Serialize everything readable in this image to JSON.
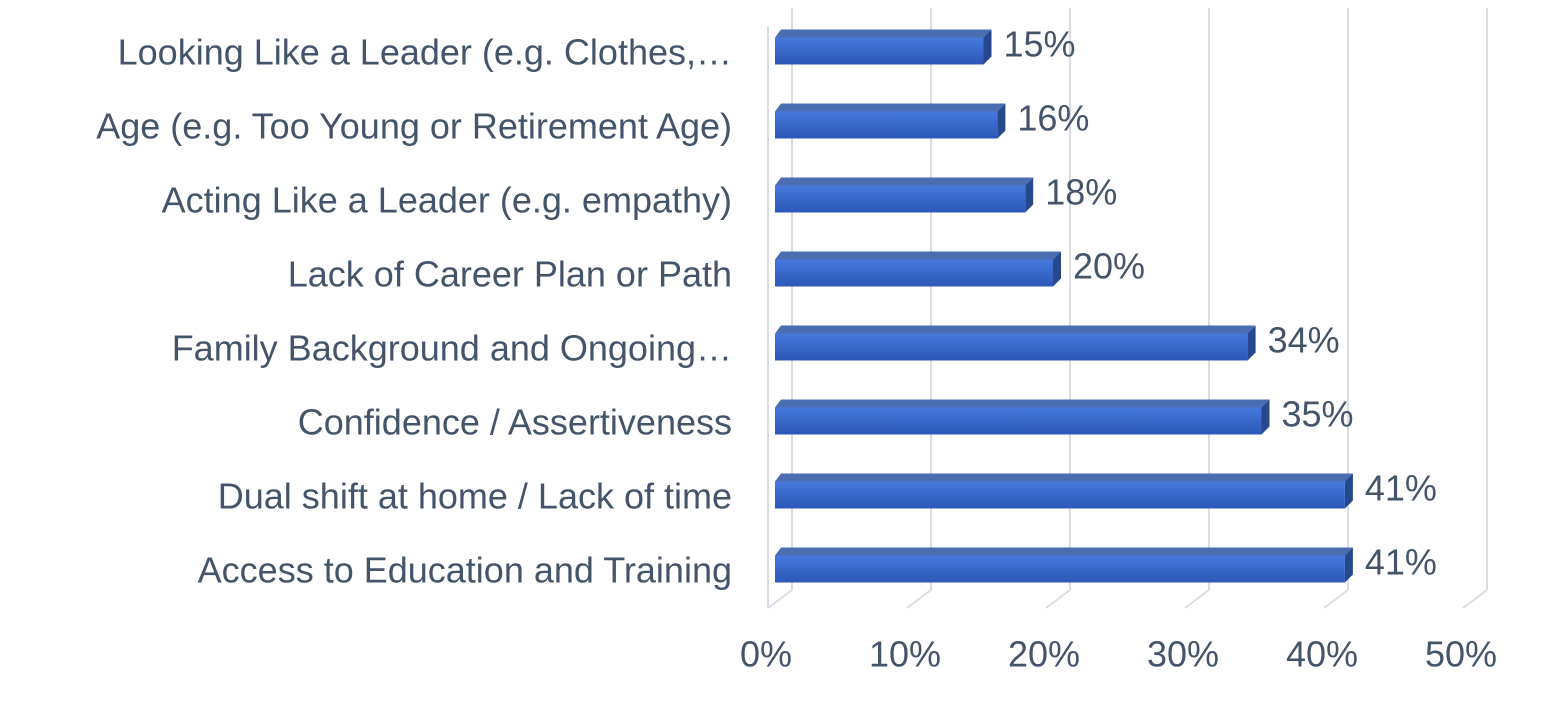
{
  "chart_data": {
    "type": "bar",
    "orientation": "horizontal",
    "categories": [
      "Looking Like a Leader (e.g. Clothes,…",
      "Age (e.g. Too Young or Retirement Age)",
      "Acting Like a Leader (e.g. empathy)",
      "Lack of Career Plan or Path",
      "Family Background and Ongoing…",
      "Confidence / Assertiveness",
      "Dual shift at home / Lack of time",
      "Access to Education and Training"
    ],
    "values": [
      15,
      16,
      18,
      20,
      34,
      35,
      41,
      41
    ],
    "value_labels": [
      "15%",
      "16%",
      "18%",
      "20%",
      "34%",
      "35%",
      "41%",
      "41%"
    ],
    "color": "#3563c6",
    "xlim": [
      0,
      50
    ],
    "xticks": [
      {
        "value": 0,
        "label": "0%"
      },
      {
        "value": 10,
        "label": "10%"
      },
      {
        "value": 20,
        "label": "20%"
      },
      {
        "value": 30,
        "label": "30%"
      },
      {
        "value": 40,
        "label": "40%"
      },
      {
        "value": 50,
        "label": "50%"
      }
    ],
    "grid": true
  }
}
